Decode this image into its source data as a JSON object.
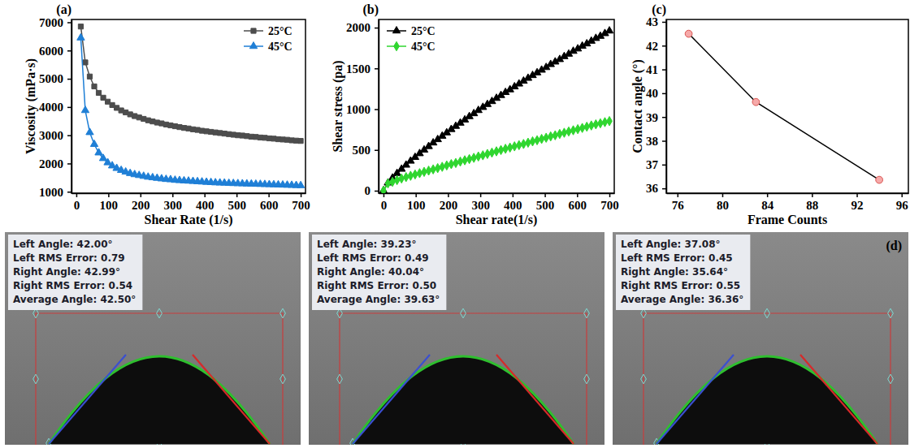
{
  "chart_data": [
    {
      "type": "line",
      "title": "(a)",
      "xlabel": "Shear Rate (1/s)",
      "ylabel": "Viscosity (mPa·s)",
      "x": [
        14,
        28,
        42,
        56,
        70,
        84,
        98,
        112,
        126,
        140,
        154,
        168,
        182,
        196,
        210,
        224,
        238,
        252,
        266,
        280,
        294,
        308,
        322,
        336,
        350,
        364,
        378,
        392,
        406,
        420,
        434,
        448,
        462,
        476,
        490,
        504,
        518,
        532,
        546,
        560,
        574,
        588,
        602,
        616,
        630,
        644,
        658,
        672,
        686,
        700
      ],
      "series": [
        {
          "name": "25°C",
          "color": "#4d4d4d",
          "marker": "square",
          "values": [
            6850,
            5580,
            5080,
            4730,
            4500,
            4330,
            4190,
            4070,
            3970,
            3880,
            3810,
            3740,
            3680,
            3630,
            3580,
            3530,
            3490,
            3450,
            3420,
            3380,
            3350,
            3320,
            3290,
            3260,
            3240,
            3210,
            3190,
            3160,
            3140,
            3120,
            3100,
            3080,
            3060,
            3040,
            3020,
            3000,
            2990,
            2970,
            2950,
            2940,
            2920,
            2910,
            2890,
            2880,
            2860,
            2850,
            2840,
            2820,
            2810,
            2800
          ]
        },
        {
          "name": "45°C",
          "color": "#1f7fd6",
          "marker": "triangle",
          "values": [
            6450,
            3880,
            3100,
            2680,
            2380,
            2180,
            2030,
            1920,
            1830,
            1760,
            1700,
            1650,
            1610,
            1580,
            1550,
            1520,
            1500,
            1480,
            1460,
            1440,
            1430,
            1410,
            1400,
            1390,
            1380,
            1370,
            1360,
            1350,
            1340,
            1330,
            1320,
            1315,
            1310,
            1300,
            1295,
            1290,
            1285,
            1280,
            1275,
            1270,
            1265,
            1260,
            1255,
            1250,
            1245,
            1240,
            1235,
            1230,
            1225,
            1220
          ]
        }
      ],
      "xlim": [
        -15,
        715
      ],
      "xticks": [
        0,
        100,
        200,
        300,
        400,
        500,
        600,
        700
      ],
      "ylim": [
        950,
        7100
      ],
      "yticks": [
        1000,
        2000,
        3000,
        4000,
        5000,
        6000,
        7000
      ],
      "grid": false,
      "legend": "upper right"
    },
    {
      "type": "line",
      "title": "(b)",
      "xlabel": "Shear rate(1/s)",
      "ylabel": "Shear stress (pa)",
      "x": [
        0,
        14,
        28,
        42,
        56,
        70,
        84,
        98,
        112,
        126,
        140,
        154,
        168,
        182,
        196,
        210,
        224,
        238,
        252,
        266,
        280,
        294,
        308,
        322,
        336,
        350,
        364,
        378,
        392,
        406,
        420,
        434,
        448,
        462,
        476,
        490,
        504,
        518,
        532,
        546,
        560,
        574,
        588,
        602,
        616,
        630,
        644,
        658,
        672,
        686,
        700
      ],
      "series": [
        {
          "name": "25°C",
          "color": "#000000",
          "marker": "triangle",
          "values": [
            0,
            96,
            156,
            213,
            265,
            315,
            364,
            410,
            456,
            500,
            543,
            587,
            628,
            670,
            711,
            752,
            791,
            830,
            869,
            910,
            946,
            985,
            1023,
            1059,
            1095,
            1134,
            1169,
            1206,
            1239,
            1275,
            1310,
            1345,
            1380,
            1414,
            1447,
            1480,
            1512,
            1549,
            1580,
            1610,
            1646,
            1676,
            1711,
            1740,
            1774,
            1802,
            1835,
            1869,
            1895,
            1928,
            1960
          ]
        },
        {
          "name": "45°C",
          "color": "#2fd62f",
          "marker": "diamond",
          "values": [
            0,
            90,
            109,
            130,
            150,
            167,
            183,
            199,
            215,
            231,
            246,
            262,
            277,
            293,
            310,
            326,
            340,
            357,
            373,
            388,
            403,
            420,
            434,
            451,
            467,
            483,
            499,
            514,
            529,
            544,
            559,
            573,
            589,
            605,
            619,
            635,
            650,
            666,
            680,
            696,
            711,
            726,
            741,
            755,
            770,
            785,
            800,
            814,
            827,
            841,
            854
          ]
        }
      ],
      "xlim": [
        -15,
        715
      ],
      "xticks": [
        0,
        100,
        200,
        300,
        400,
        500,
        600,
        700
      ],
      "ylim": [
        -30,
        2100
      ],
      "yticks": [
        0,
        500,
        1000,
        1500,
        2000
      ],
      "grid": false,
      "legend": "upper left"
    },
    {
      "type": "line",
      "title": "(c)",
      "xlabel": "Frame Counts",
      "ylabel": "Contact angle (°)",
      "x": [
        77,
        83,
        94
      ],
      "values": [
        42.5,
        39.63,
        36.36
      ],
      "color": "#000000",
      "marker": "circle",
      "xlim": [
        75,
        96.6
      ],
      "xticks": [
        76,
        80,
        84,
        88,
        92,
        96
      ],
      "ylim": [
        35.8,
        43.1
      ],
      "yticks": [
        36,
        37,
        38,
        39,
        40,
        41,
        42,
        43
      ],
      "grid": false
    }
  ],
  "images": {
    "label": "(d)",
    "frames": [
      {
        "readouts": [
          "Left Angle: 42.00°",
          "Left RMS Error: 0.79",
          "Right Angle: 42.99°",
          "Right RMS Error: 0.54",
          "Average Angle: 42.50°"
        ]
      },
      {
        "readouts": [
          "Left Angle: 39.23°",
          "Left RMS Error: 0.49",
          "Right Angle: 40.04°",
          "Right RMS Error: 0.50",
          "Average Angle: 39.63°"
        ]
      },
      {
        "readouts": [
          "Left Angle: 37.08°",
          "Left RMS Error: 0.45",
          "Right Angle: 35.64°",
          "Right RMS Error: 0.55",
          "Average Angle: 36.36°"
        ]
      }
    ]
  }
}
